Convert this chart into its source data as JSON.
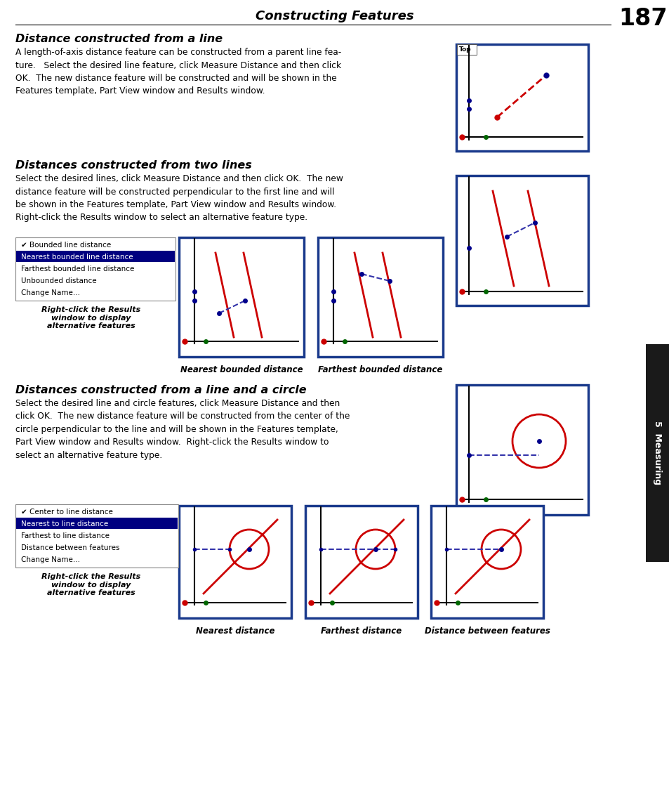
{
  "page_title": "Constructing Features",
  "page_number": "187",
  "bg_color": "#ffffff",
  "section1_title": "Distance constructed from a line",
  "section1_body": "A length-of-axis distance feature can be constructed from a parent line fea-\nture.   Select the desired line feature, click Measure Distance and then click\nOK.  The new distance feature will be constructed and will be shown in the\nFeatures template, Part View window and Results window.",
  "section2_title": "Distances constructed from two lines",
  "section2_body": "Select the desired lines, click Measure Distance and then click OK.  The new\ndistance feature will be constructed perpendicular to the first line and will\nbe shown in the Features template, Part View window and Results window.\nRight-click the Results window to select an alternative feature type.",
  "section2_menu_items": [
    "✔ Bounded line distance",
    "Nearest bounded line distance",
    "Farthest bounded line distance",
    "Unbounded distance",
    "Change Name..."
  ],
  "section2_menu_selected": 1,
  "section2_caption1": "Nearest bounded distance",
  "section2_caption2": "Farthest bounded distance",
  "section2_caption3": "Right-click the Results\nwindow to display\nalternative features",
  "section3_title": "Distances constructed from a line and a circle",
  "section3_body": "Select the desired line and circle features, click Measure Distance and then\nclick OK.  The new distance feature will be constructed from the center of the\ncircle perpendicular to the line and will be shown in the Features template,\nPart View window and Results window.  Right-click the Results window to\nselect an alternative feature type.",
  "section3_menu_items": [
    "✔ Center to line distance",
    "Nearest to line distance",
    "Farthest to line distance",
    "Distance between features",
    "Change Name..."
  ],
  "section3_menu_selected": 1,
  "section3_caption1": "Nearest distance",
  "section3_caption2": "Farthest distance",
  "section3_caption3": "Distance between features",
  "section3_caption4": "Right-click the Results\nwindow to display\nalternative features",
  "border_color": "#1a3a8c",
  "red": "#cc0000",
  "green": "#006600",
  "blue_dot": "#00008B",
  "dashed_blue": "#3333aa",
  "sidebar_color": "#1a1a1a"
}
